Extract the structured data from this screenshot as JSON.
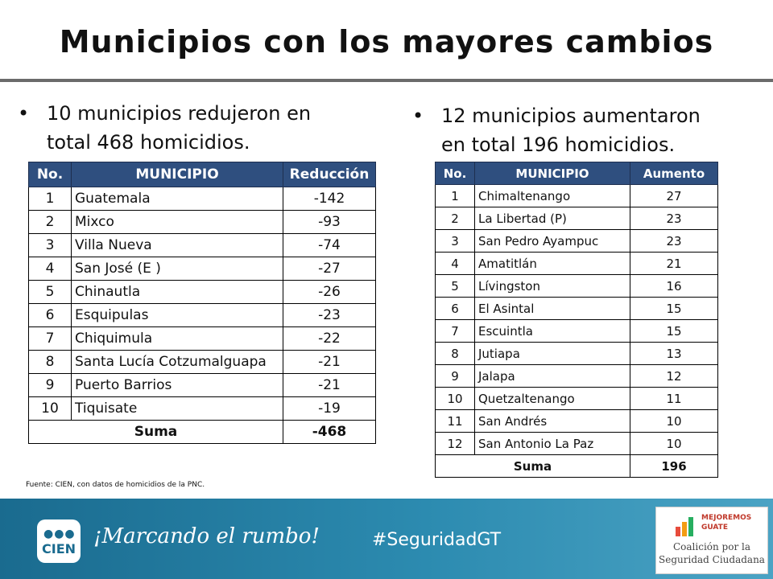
{
  "title": "Municipios con los mayores cambios",
  "left": {
    "bullet_line1": "10 municipios redujeron en",
    "bullet_line2": "total 468 homicidios.",
    "headers": [
      "No.",
      "MUNICIPIO",
      "Reducción"
    ],
    "rows": [
      [
        "1",
        "Guatemala",
        "-142"
      ],
      [
        "2",
        "Mixco",
        "-93"
      ],
      [
        "3",
        "Villa Nueva",
        "-74"
      ],
      [
        "4",
        "San José (E )",
        "-27"
      ],
      [
        "5",
        "Chinautla",
        "-26"
      ],
      [
        "6",
        "Esquipulas",
        "-23"
      ],
      [
        "7",
        "Chiquimula",
        "-22"
      ],
      [
        "8",
        "Santa Lucía Cotzumalguapa",
        "-21"
      ],
      [
        "9",
        "Puerto Barrios",
        "-21"
      ],
      [
        "10",
        "Tiquisate",
        "-19"
      ]
    ],
    "sum_label": "Suma",
    "sum_value": "-468"
  },
  "right": {
    "bullet_line1": "12 municipios aumentaron",
    "bullet_line2": "en total 196 homicidios.",
    "headers": [
      "No.",
      "MUNICIPIO",
      "Aumento"
    ],
    "rows": [
      [
        "1",
        "Chimaltenango",
        "27"
      ],
      [
        "2",
        "La Libertad (P)",
        "23"
      ],
      [
        "3",
        "San Pedro Ayampuc",
        "23"
      ],
      [
        "4",
        "Amatitlán",
        "21"
      ],
      [
        "5",
        "Lívingston",
        "16"
      ],
      [
        "6",
        "El Asintal",
        "15"
      ],
      [
        "7",
        "Escuintla",
        "15"
      ],
      [
        "8",
        "Jutiapa",
        "13"
      ],
      [
        "9",
        "Jalapa",
        "12"
      ],
      [
        "10",
        "Quetzaltenango",
        "11"
      ],
      [
        "11",
        "San Andrés",
        "10"
      ],
      [
        "12",
        "San Antonio La Paz",
        "10"
      ]
    ],
    "sum_label": "Suma",
    "sum_value": "196"
  },
  "source": "Fuente: CIEN, con datos de homicidios de la PNC.",
  "footer": {
    "logo_text": "CIEN",
    "slogan": "¡Marcando el rumbo!",
    "hashtag": "#SeguridadGT",
    "partner_line1": "MEJOREMOS",
    "partner_line2": "GUATE",
    "coalition_line1": "Coalición por la",
    "coalition_line2": "Seguridad Ciudadana"
  },
  "colors": {
    "header_bg": "#2f4f7f",
    "footer_bg": "#2c8bb0"
  }
}
